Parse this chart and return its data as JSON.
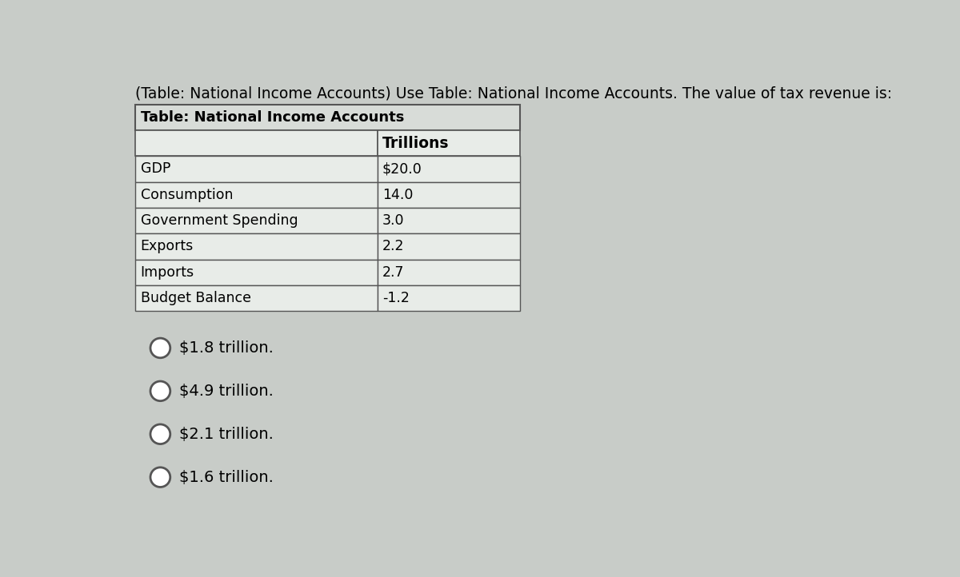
{
  "title_text": "(Table: National Income Accounts) Use Table: National Income Accounts. The value of tax revenue is:",
  "table_title": "Table: National Income Accounts",
  "col_header": "Trillions",
  "rows": [
    [
      "GDP",
      "$20.0"
    ],
    [
      "Consumption",
      "14.0"
    ],
    [
      "Government Spending",
      "3.0"
    ],
    [
      "Exports",
      "2.2"
    ],
    [
      "Imports",
      "2.7"
    ],
    [
      "Budget Balance",
      "-1.2"
    ]
  ],
  "options": [
    "$1.8 trillion.",
    "$4.9 trillion.",
    "$2.1 trillion.",
    "$1.6 trillion."
  ],
  "bg_color": "#c8ccc8",
  "table_title_bg": "#d8dcd8",
  "col_header_bg": "#e8ece8",
  "cell_bg": "#e8ece8",
  "border_color": "#555555",
  "title_fontsize": 13.5,
  "table_title_fontsize": 13,
  "cell_fontsize": 12.5,
  "option_fontsize": 14
}
